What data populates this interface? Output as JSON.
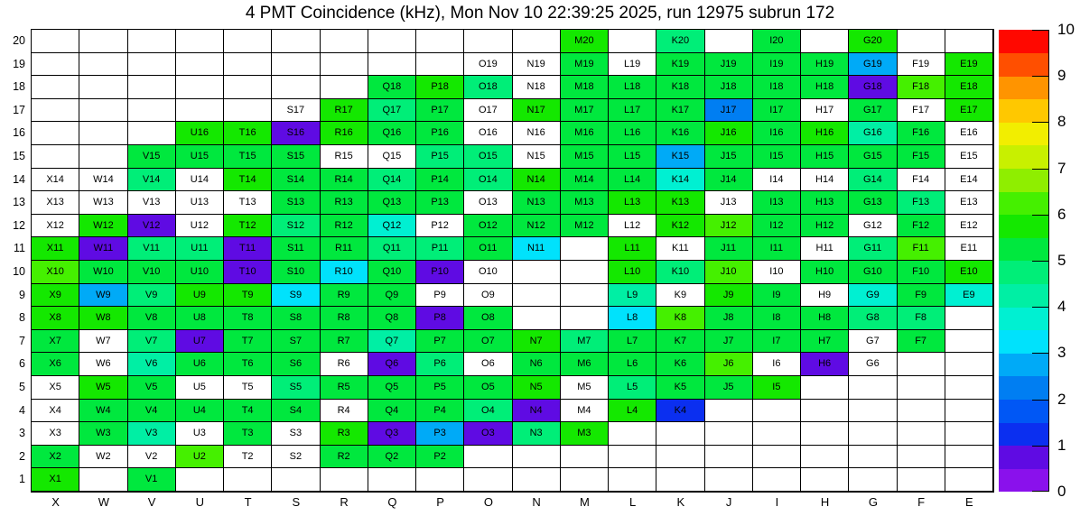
{
  "title": "4 PMT Coincidence (kHz), Mon Nov 10 22:39:25 2025, run 12975 subrun 172",
  "chart_data": {
    "type": "heatmap",
    "title": "4 PMT Coincidence (kHz), Mon Nov 10 22:39:25 2025, run 12975 subrun 172",
    "unit": "kHz",
    "x_categories": [
      "X",
      "W",
      "V",
      "U",
      "T",
      "S",
      "R",
      "Q",
      "P",
      "O",
      "N",
      "M",
      "L",
      "K",
      "J",
      "I",
      "H",
      "G",
      "F",
      "E"
    ],
    "y_categories": [
      "20",
      "19",
      "18",
      "17",
      "16",
      "15",
      "14",
      "13",
      "12",
      "11",
      "10",
      "9",
      "8",
      "7",
      "6",
      "5",
      "4",
      "3",
      "2",
      "1"
    ],
    "colorbar": {
      "min": 0,
      "max": 10,
      "tick_labels": [
        "0",
        "1",
        "2",
        "3",
        "4",
        "5",
        "6",
        "7",
        "8",
        "9",
        "10"
      ],
      "segment_colors_bottom_to_top": [
        "#8a11ec",
        "#5f0be3",
        "#0b2ff0",
        "#0057f5",
        "#007ef2",
        "#00aaf7",
        "#00e2fc",
        "#00f0d2",
        "#00efa4",
        "#00ee78",
        "#00e83e",
        "#14e800",
        "#45f000",
        "#8fee00",
        "#c8f000",
        "#f2ee00",
        "#ffc800",
        "#ff9400",
        "#ff4f00",
        "#ff0800"
      ]
    },
    "palette": {
      "w": {
        "color": "#ffffff",
        "value": 0.0
      },
      "v": {
        "color": "#5f0be3",
        "value": 0.7
      },
      "b1": {
        "color": "#0b2ff0",
        "value": 1.3
      },
      "b2": {
        "color": "#007ef2",
        "value": 2.2
      },
      "b25": {
        "color": "#00aaf7",
        "value": 2.8
      },
      "c3": {
        "color": "#00e2fc",
        "value": 3.2
      },
      "c35": {
        "color": "#00f0d2",
        "value": 3.8
      },
      "g4": {
        "color": "#00efa4",
        "value": 4.2
      },
      "g45": {
        "color": "#00ee78",
        "value": 4.8
      },
      "g5": {
        "color": "#00e83e",
        "value": 5.2
      },
      "g55": {
        "color": "#14e800",
        "value": 5.8
      },
      "g6": {
        "color": "#45f000",
        "value": 6.2
      }
    },
    "cells": [
      [
        null,
        null,
        null,
        null,
        null,
        null,
        null,
        null,
        null,
        null,
        null,
        "g55",
        null,
        "g45",
        null,
        "g5",
        null,
        "g55",
        null,
        null
      ],
      [
        null,
        null,
        null,
        null,
        null,
        null,
        null,
        null,
        null,
        "w",
        "w",
        "g5",
        "w",
        "g5",
        "g5",
        "g5",
        "g5",
        "b25",
        "w",
        "g55"
      ],
      [
        null,
        null,
        null,
        null,
        null,
        null,
        null,
        "g5",
        "g55",
        "g45",
        "w",
        "g5",
        "g5",
        "g5",
        "g5",
        "g5",
        "g5",
        "v",
        "g6",
        "g55"
      ],
      [
        null,
        null,
        null,
        null,
        null,
        "w",
        "g55",
        "g45",
        "g5",
        "w",
        "g55",
        "g5",
        "g5",
        "g5",
        "b2",
        "g5",
        "w",
        "g5",
        "w",
        "g55"
      ],
      [
        null,
        null,
        null,
        "g55",
        "g55",
        "v",
        "g55",
        "g5",
        "g5",
        "w",
        "w",
        "g5",
        "g5",
        "g5",
        "g55",
        "g5",
        "g55",
        "g4",
        "g5",
        "w"
      ],
      [
        null,
        null,
        "g5",
        "g5",
        "g5",
        "g5",
        "w",
        "w",
        "g45",
        "g45",
        "w",
        "g5",
        "g5",
        "b25",
        "g5",
        "g5",
        "g5",
        "g5",
        "g5",
        "w"
      ],
      [
        "w",
        "w",
        "g45",
        "w",
        "g55",
        "g5",
        "g5",
        "g45",
        "g5",
        "g45",
        "g55",
        "g5",
        "g5",
        "c35",
        "g5",
        "w",
        "w",
        "g45",
        "w",
        "w"
      ],
      [
        "w",
        "w",
        "w",
        "w",
        "w",
        "g5",
        "g5",
        "g5",
        "g5",
        "w",
        "g5",
        "g5",
        "g55",
        "g55",
        "w",
        "g5",
        "g5",
        "g5",
        "g45",
        "w"
      ],
      [
        "w",
        "g55",
        "v",
        "w",
        "g55",
        "g45",
        "g5",
        "c35",
        "w",
        "g5",
        "g5",
        "g5",
        "w",
        "g55",
        "g6",
        "g5",
        "g5",
        "w",
        "g5",
        "w"
      ],
      [
        "g55",
        "v",
        "g45",
        "g45",
        "v",
        "g5",
        "g5",
        "g45",
        "g45",
        "g5",
        "c3",
        null,
        "g55",
        "w",
        "g5",
        "g5",
        "w",
        "g45",
        "g6",
        "w"
      ],
      [
        "g6",
        "g5",
        "g5",
        "g5",
        "v",
        "g5",
        "c3",
        "g5",
        "v",
        "w",
        null,
        null,
        "g55",
        "g45",
        "g6",
        "w",
        "g5",
        "g5",
        "g5",
        "g55"
      ],
      [
        "g55",
        "b25",
        "g45",
        "g55",
        "g55",
        "c3",
        "g5",
        "g5",
        "w",
        "w",
        null,
        null,
        "g4",
        "w",
        "g55",
        "g5",
        "w",
        "c35",
        "g5",
        "c35"
      ],
      [
        "g55",
        "g55",
        "g5",
        "g5",
        "g5",
        "g5",
        "g5",
        "g5",
        "v",
        "g5",
        null,
        null,
        "c3",
        "g6",
        "g5",
        "g5",
        "g5",
        "g45",
        "g45",
        null
      ],
      [
        "g5",
        "w",
        "g45",
        "v",
        "g5",
        "g5",
        "g5",
        "g4",
        "g5",
        "g5",
        "g55",
        "g45",
        "g5",
        "g5",
        "g5",
        "g5",
        "g5",
        "w",
        "g5",
        null
      ],
      [
        "g5",
        "w",
        "g4",
        "g5",
        "g5",
        "g5",
        "w",
        "v",
        "g45",
        "w",
        "g5",
        "g5",
        "g5",
        "g5",
        "g6",
        "w",
        "v",
        "w",
        null,
        null
      ],
      [
        "w",
        "g55",
        "g5",
        "w",
        "w",
        "g45",
        "g5",
        "g5",
        "g5",
        "g5",
        "g55",
        "w",
        "g45",
        "g5",
        "g5",
        "g55",
        null,
        null,
        null,
        null
      ],
      [
        "w",
        "g5",
        "g5",
        "g5",
        "g5",
        "g5",
        "w",
        "g5",
        "g5",
        "g45",
        "v",
        "w",
        "g55",
        "b1",
        null,
        null,
        null,
        null,
        null,
        null
      ],
      [
        "w",
        "g5",
        "g4",
        "w",
        "g5",
        "w",
        "g55",
        "v",
        "b25",
        "v",
        "g45",
        "g55",
        null,
        null,
        null,
        null,
        null,
        null,
        null,
        null
      ],
      [
        "g5",
        "w",
        "w",
        "g6",
        "w",
        "w",
        "g5",
        "g5",
        "g5",
        null,
        null,
        null,
        null,
        null,
        null,
        null,
        null,
        null,
        null,
        null
      ],
      [
        "g55",
        null,
        "g5",
        null,
        null,
        null,
        null,
        null,
        null,
        null,
        null,
        null,
        null,
        null,
        null,
        null,
        null,
        null,
        null,
        null
      ]
    ]
  }
}
